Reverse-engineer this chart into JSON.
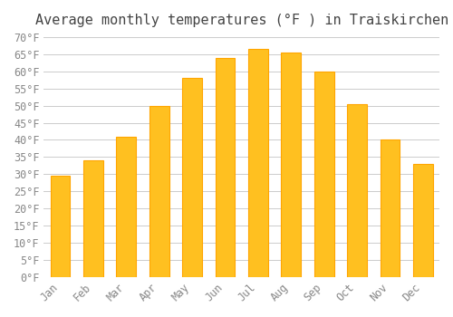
{
  "title": "Average monthly temperatures (°F ) in Traiskirchen",
  "months": [
    "Jan",
    "Feb",
    "Mar",
    "Apr",
    "May",
    "Jun",
    "Jul",
    "Aug",
    "Sep",
    "Oct",
    "Nov",
    "Dec"
  ],
  "values": [
    29.5,
    34.0,
    41.0,
    50.0,
    58.0,
    64.0,
    66.5,
    65.5,
    60.0,
    50.5,
    40.0,
    33.0
  ],
  "bar_color_main": "#FFC020",
  "bar_color_edge": "#FFA500",
  "background_color": "#FFFFFF",
  "grid_color": "#CCCCCC",
  "ylim": [
    0,
    70
  ],
  "ytick_step": 5,
  "title_fontsize": 11,
  "tick_fontsize": 8.5
}
